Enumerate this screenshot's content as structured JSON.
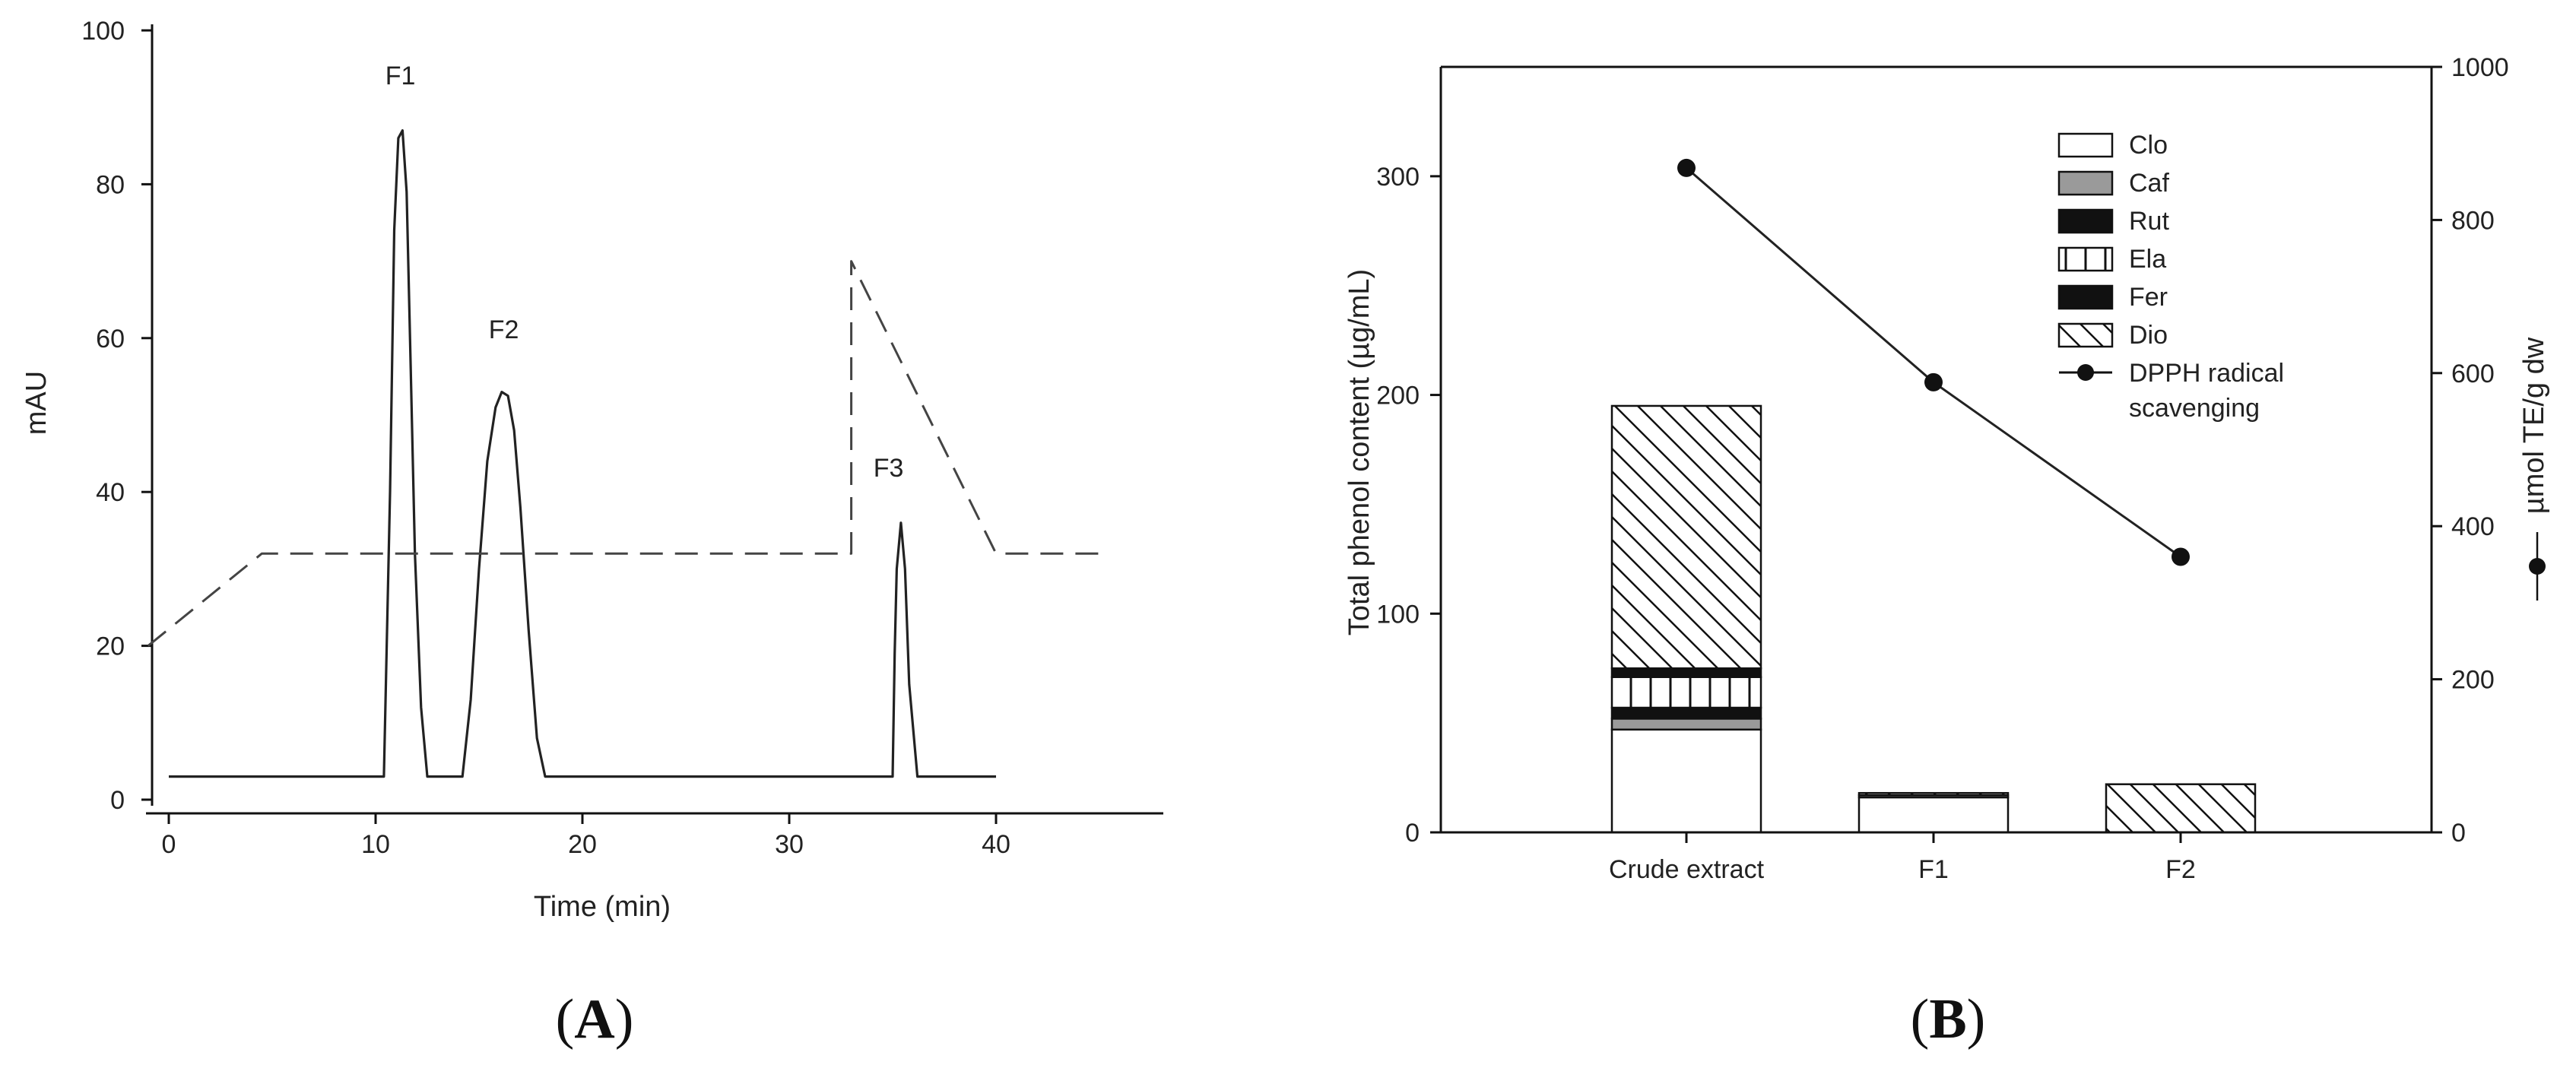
{
  "chart_data": [
    {
      "panel_label": {
        "open": "(",
        "letter": "A",
        "close": ")"
      },
      "type": "line",
      "xlabel": "Time (min)",
      "ylabel": "mAU",
      "xlim": [
        -1,
        46
      ],
      "ylim": [
        0,
        100
      ],
      "xticks": [
        0,
        10,
        20,
        30,
        40
      ],
      "yticks": [
        0,
        20,
        40,
        60,
        80,
        100
      ],
      "peak_labels": [
        {
          "text": "F1",
          "x": 11.2,
          "y": 93
        },
        {
          "text": "F2",
          "x": 16.2,
          "y": 60
        },
        {
          "text": "F3",
          "x": 34.8,
          "y": 42
        }
      ],
      "series": [
        {
          "style": "solid",
          "x": [
            0,
            10.4,
            10.7,
            10.9,
            11.1,
            11.3,
            11.5,
            11.7,
            11.9,
            12.2,
            12.5,
            12.8,
            14.2,
            14.6,
            15.0,
            15.4,
            15.8,
            16.1,
            16.4,
            16.7,
            17.0,
            17.4,
            17.8,
            18.2,
            18.6,
            35.0,
            35.1,
            35.2,
            35.4,
            35.6,
            35.8,
            36.2,
            40.0
          ],
          "y": [
            3,
            3,
            40,
            74,
            86,
            87,
            79,
            56,
            32,
            12,
            3,
            3,
            3,
            13,
            30,
            44,
            51,
            53,
            52.5,
            48,
            38,
            22,
            8,
            3,
            3,
            3,
            19,
            30,
            36,
            30,
            15,
            3,
            3
          ]
        },
        {
          "style": "dashed",
          "x": [
            -1,
            4.5,
            33,
            33,
            40,
            45
          ],
          "y": [
            20,
            32,
            32,
            70,
            32,
            32
          ]
        }
      ]
    },
    {
      "panel_label": {
        "open": "(",
        "letter": "B",
        "close": ")"
      },
      "type": "bar",
      "stacked": true,
      "categories": [
        "Crude extract",
        "F1",
        "F2"
      ],
      "ylabel": "Total phenol content (µg/mL)",
      "y2label": "µmol TE/g dw",
      "ylim": [
        0,
        350
      ],
      "y2lim": [
        0,
        1000
      ],
      "yticks": [
        0,
        100,
        200,
        300
      ],
      "y2ticks": [
        0,
        200,
        400,
        600,
        800,
        1000
      ],
      "series": [
        {
          "name": "Clo",
          "values": [
            47,
            16,
            0
          ],
          "fill": "#ffffff"
        },
        {
          "name": "Caf",
          "values": [
            5,
            1,
            0
          ],
          "fill": "#9a9a9a"
        },
        {
          "name": "Rut",
          "values": [
            5,
            0,
            0
          ],
          "fill": "#111111"
        },
        {
          "name": "Ela",
          "values": [
            14,
            0,
            0
          ],
          "fill": "vlines"
        },
        {
          "name": "Fer",
          "values": [
            4,
            0,
            0
          ],
          "fill": "#111111"
        },
        {
          "name": "Dio",
          "values": [
            120,
            1,
            22
          ],
          "fill": "diag"
        }
      ],
      "line_series": {
        "name": "DPPH radical scavenging",
        "legend_lines": [
          "DPPH radical",
          "scavenging"
        ],
        "axis": "right",
        "values": [
          868,
          588,
          360
        ]
      },
      "legend_position": "top-right"
    }
  ]
}
